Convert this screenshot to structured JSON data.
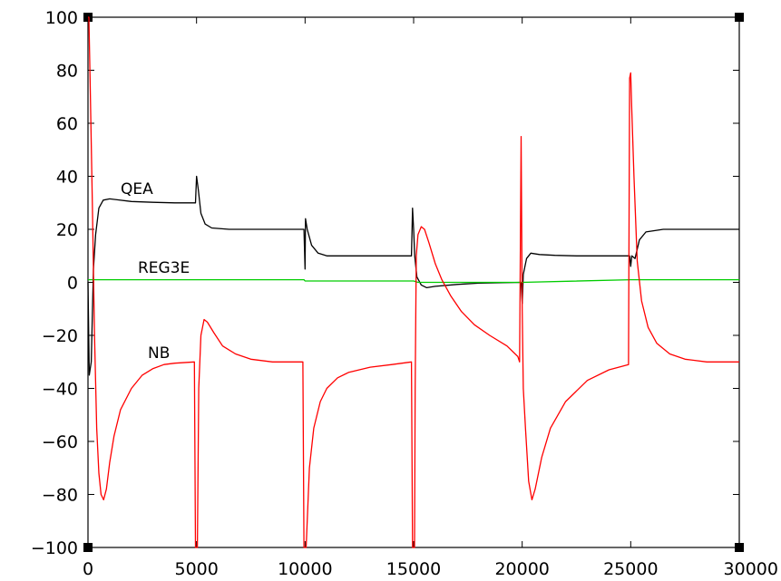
{
  "chart_data": {
    "type": "line",
    "title": "",
    "xlabel": "",
    "ylabel": "",
    "xlim": [
      0,
      30000
    ],
    "ylim": [
      -100,
      100
    ],
    "x_ticks": [
      "0",
      "5000",
      "10000",
      "15000",
      "20000",
      "25000",
      "30000"
    ],
    "y_ticks": [
      "100",
      "80",
      "60",
      "40",
      "20",
      "0",
      "−20",
      "−40",
      "−60",
      "−80",
      "−100"
    ],
    "grid": false,
    "legend": "none",
    "series": [
      {
        "name": "QEA",
        "color": "#000000",
        "points": [
          [
            0,
            0
          ],
          [
            60,
            -35
          ],
          [
            150,
            -30
          ],
          [
            250,
            5
          ],
          [
            350,
            18
          ],
          [
            500,
            28
          ],
          [
            700,
            31
          ],
          [
            1000,
            31.5
          ],
          [
            2000,
            30.5
          ],
          [
            3000,
            30.2
          ],
          [
            4000,
            30
          ],
          [
            4950,
            30
          ],
          [
            5000,
            40
          ],
          [
            5080,
            35
          ],
          [
            5200,
            26
          ],
          [
            5400,
            22
          ],
          [
            5700,
            20.5
          ],
          [
            6500,
            20
          ],
          [
            9950,
            20
          ],
          [
            10000,
            5
          ],
          [
            10020,
            24
          ],
          [
            10100,
            20
          ],
          [
            10300,
            14
          ],
          [
            10600,
            11
          ],
          [
            11000,
            10
          ],
          [
            14900,
            10
          ],
          [
            14950,
            28
          ],
          [
            15000,
            20
          ],
          [
            15050,
            10
          ],
          [
            15150,
            2
          ],
          [
            15350,
            -1
          ],
          [
            15600,
            -2
          ],
          [
            16000,
            -1.5
          ],
          [
            17000,
            -0.8
          ],
          [
            18000,
            -0.3
          ],
          [
            19950,
            0
          ],
          [
            20000,
            -8
          ],
          [
            20050,
            3
          ],
          [
            20200,
            9
          ],
          [
            20400,
            11
          ],
          [
            20800,
            10.5
          ],
          [
            21500,
            10.2
          ],
          [
            22500,
            10
          ],
          [
            24950,
            10
          ],
          [
            25000,
            6
          ],
          [
            25050,
            10
          ],
          [
            25200,
            9
          ],
          [
            25400,
            16
          ],
          [
            25700,
            19
          ],
          [
            26500,
            20
          ],
          [
            30000,
            20
          ]
        ]
      },
      {
        "name": "REG3E",
        "color": "#00cc00",
        "points": [
          [
            0,
            1
          ],
          [
            9950,
            1
          ],
          [
            10000,
            0.5
          ],
          [
            15000,
            0.5
          ],
          [
            15200,
            0
          ],
          [
            20000,
            0
          ],
          [
            25000,
            1
          ],
          [
            30000,
            1
          ]
        ]
      },
      {
        "name": "NB",
        "color": "#ff0000",
        "points": [
          [
            0,
            100
          ],
          [
            40,
            100
          ],
          [
            100,
            75
          ],
          [
            200,
            30
          ],
          [
            300,
            -20
          ],
          [
            400,
            -55
          ],
          [
            500,
            -72
          ],
          [
            600,
            -80
          ],
          [
            720,
            -82
          ],
          [
            850,
            -78
          ],
          [
            1000,
            -68
          ],
          [
            1200,
            -58
          ],
          [
            1500,
            -48
          ],
          [
            2000,
            -40
          ],
          [
            2500,
            -35
          ],
          [
            3000,
            -32.5
          ],
          [
            3500,
            -31
          ],
          [
            4000,
            -30.5
          ],
          [
            4900,
            -30
          ],
          [
            4950,
            -100
          ],
          [
            5040,
            -100
          ],
          [
            5100,
            -40
          ],
          [
            5200,
            -20
          ],
          [
            5350,
            -14
          ],
          [
            5500,
            -15
          ],
          [
            5800,
            -19
          ],
          [
            6200,
            -24
          ],
          [
            6800,
            -27
          ],
          [
            7500,
            -29
          ],
          [
            8500,
            -30
          ],
          [
            9900,
            -30
          ],
          [
            9950,
            -100
          ],
          [
            10050,
            -100
          ],
          [
            10200,
            -70
          ],
          [
            10400,
            -55
          ],
          [
            10700,
            -45
          ],
          [
            11000,
            -40
          ],
          [
            11500,
            -36
          ],
          [
            12000,
            -34
          ],
          [
            13000,
            -32
          ],
          [
            14000,
            -31
          ],
          [
            14900,
            -30
          ],
          [
            14950,
            -100
          ],
          [
            15040,
            -100
          ],
          [
            15070,
            -40
          ],
          [
            15120,
            10
          ],
          [
            15200,
            18
          ],
          [
            15350,
            21
          ],
          [
            15500,
            20
          ],
          [
            15700,
            15
          ],
          [
            16000,
            7
          ],
          [
            16300,
            1
          ],
          [
            16700,
            -5
          ],
          [
            17200,
            -11
          ],
          [
            17800,
            -16
          ],
          [
            18500,
            -20
          ],
          [
            19300,
            -24
          ],
          [
            19800,
            -28
          ],
          [
            19880,
            -30
          ],
          [
            19950,
            55
          ],
          [
            20000,
            -10
          ],
          [
            20050,
            -40
          ],
          [
            20150,
            -55
          ],
          [
            20300,
            -75
          ],
          [
            20450,
            -82
          ],
          [
            20600,
            -78
          ],
          [
            20900,
            -66
          ],
          [
            21300,
            -55
          ],
          [
            22000,
            -45
          ],
          [
            23000,
            -37
          ],
          [
            24000,
            -33
          ],
          [
            24900,
            -31
          ],
          [
            24950,
            77
          ],
          [
            25000,
            79
          ],
          [
            25050,
            65
          ],
          [
            25150,
            40
          ],
          [
            25300,
            8
          ],
          [
            25500,
            -7
          ],
          [
            25800,
            -17
          ],
          [
            26200,
            -23
          ],
          [
            26800,
            -27
          ],
          [
            27500,
            -29
          ],
          [
            28500,
            -30
          ],
          [
            30000,
            -30
          ]
        ]
      }
    ]
  }
}
